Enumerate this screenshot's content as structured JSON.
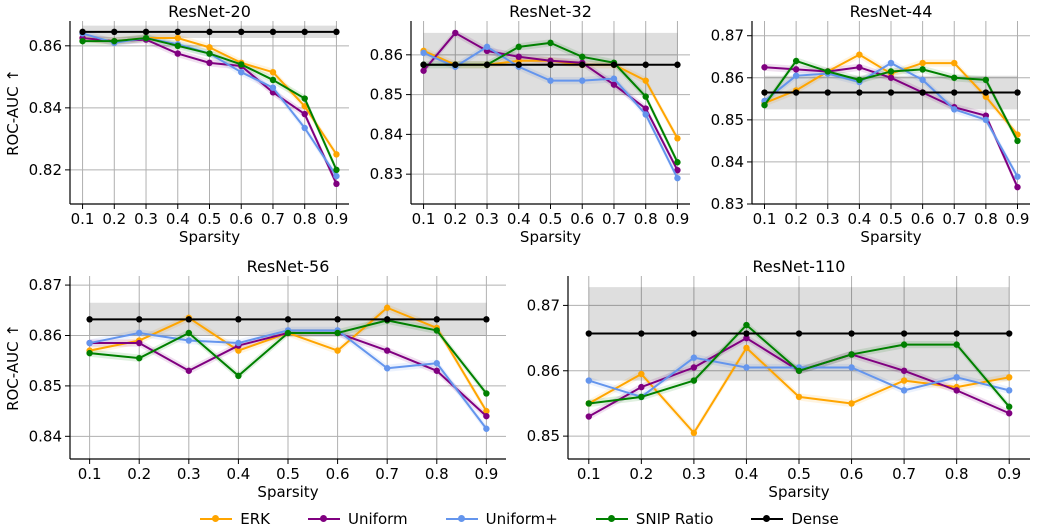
{
  "chart_data": [
    {
      "type": "line",
      "title": "ResNet-20",
      "xlabel": "Sparsity",
      "ylabel": "ROC-AUC ↑",
      "x": [
        0.1,
        0.2,
        0.3,
        0.4,
        0.5,
        0.6,
        0.7,
        0.8,
        0.9
      ],
      "xticks": [
        "0.1",
        "0.2",
        "0.3",
        "0.4",
        "0.5",
        "0.6",
        "0.7",
        "0.8",
        "0.9"
      ],
      "ylim": [
        0.809,
        0.868
      ],
      "yticks": [
        0.82,
        0.84,
        0.86
      ],
      "ytick_labels": [
        "0.82",
        "0.84",
        "0.86"
      ],
      "series": [
        {
          "name": "ERK",
          "values": [
            0.8625,
            0.8615,
            0.8625,
            0.8625,
            0.8595,
            0.8545,
            0.8515,
            0.8405,
            0.825
          ]
        },
        {
          "name": "Uniform",
          "values": [
            0.8625,
            0.8615,
            0.862,
            0.8575,
            0.8545,
            0.8535,
            0.845,
            0.838,
            0.8155
          ]
        },
        {
          "name": "Uniform+",
          "values": [
            0.864,
            0.861,
            0.8625,
            0.8605,
            0.8575,
            0.8515,
            0.8465,
            0.8335,
            0.818
          ]
        },
        {
          "name": "SNIP Ratio",
          "values": [
            0.8615,
            0.8615,
            0.8625,
            0.86,
            0.8575,
            0.854,
            0.849,
            0.843,
            0.82
          ]
        },
        {
          "name": "Dense",
          "values": [
            0.8645,
            0.8645,
            0.8645,
            0.8645,
            0.8645,
            0.8645,
            0.8645,
            0.8645,
            0.8645
          ],
          "band": [
            0.8625,
            0.8665
          ]
        }
      ]
    },
    {
      "type": "line",
      "title": "ResNet-32",
      "xlabel": "Sparsity",
      "ylabel": "",
      "x": [
        0.1,
        0.2,
        0.3,
        0.4,
        0.5,
        0.6,
        0.7,
        0.8,
        0.9
      ],
      "xticks": [
        "0.1",
        "0.2",
        "0.3",
        "0.4",
        "0.5",
        "0.6",
        "0.7",
        "0.8",
        "0.9"
      ],
      "ylim": [
        0.8225,
        0.8685
      ],
      "yticks": [
        0.83,
        0.84,
        0.85,
        0.86
      ],
      "ytick_labels": [
        "0.83",
        "0.84",
        "0.85",
        "0.86"
      ],
      "series": [
        {
          "name": "ERK",
          "values": [
            0.861,
            0.8575,
            0.8575,
            0.8585,
            0.8585,
            0.8575,
            0.8575,
            0.8535,
            0.839
          ]
        },
        {
          "name": "Uniform",
          "values": [
            0.856,
            0.8655,
            0.861,
            0.8595,
            0.8585,
            0.858,
            0.8525,
            0.8465,
            0.831
          ]
        },
        {
          "name": "Uniform+",
          "values": [
            0.8605,
            0.857,
            0.862,
            0.857,
            0.8535,
            0.8535,
            0.854,
            0.845,
            0.829
          ]
        },
        {
          "name": "SNIP Ratio",
          "values": [
            0.8575,
            0.8575,
            0.8575,
            0.862,
            0.863,
            0.8595,
            0.858,
            0.8495,
            0.833
          ]
        },
        {
          "name": "Dense",
          "values": [
            0.8575,
            0.8575,
            0.8575,
            0.8575,
            0.8575,
            0.8575,
            0.8575,
            0.8575,
            0.8575
          ],
          "band": [
            0.85,
            0.8655
          ]
        }
      ]
    },
    {
      "type": "line",
      "title": "ResNet-44",
      "xlabel": "Sparsity",
      "ylabel": "",
      "x": [
        0.1,
        0.2,
        0.3,
        0.4,
        0.5,
        0.6,
        0.7,
        0.8,
        0.9
      ],
      "xticks": [
        "0.1",
        "0.2",
        "0.3",
        "0.4",
        "0.5",
        "0.6",
        "0.7",
        "0.8",
        "0.9"
      ],
      "ylim": [
        0.83,
        0.8735
      ],
      "yticks": [
        0.83,
        0.84,
        0.85,
        0.86,
        0.87
      ],
      "ytick_labels": [
        "0.83",
        "0.84",
        "0.85",
        "0.86",
        "0.87"
      ],
      "series": [
        {
          "name": "ERK",
          "values": [
            0.854,
            0.857,
            0.8615,
            0.8655,
            0.861,
            0.8635,
            0.8635,
            0.8555,
            0.8465
          ]
        },
        {
          "name": "Uniform",
          "values": [
            0.8625,
            0.862,
            0.8615,
            0.8625,
            0.86,
            0.8565,
            0.853,
            0.851,
            0.834
          ]
        },
        {
          "name": "Uniform+",
          "values": [
            0.8545,
            0.8605,
            0.861,
            0.859,
            0.8635,
            0.8595,
            0.8525,
            0.85,
            0.8365
          ]
        },
        {
          "name": "SNIP Ratio",
          "values": [
            0.8535,
            0.864,
            0.8615,
            0.8595,
            0.8615,
            0.862,
            0.86,
            0.8595,
            0.845
          ]
        },
        {
          "name": "Dense",
          "values": [
            0.8565,
            0.8565,
            0.8565,
            0.8565,
            0.8565,
            0.8565,
            0.8565,
            0.8565,
            0.8565
          ],
          "band": [
            0.8525,
            0.8605
          ]
        }
      ]
    },
    {
      "type": "line",
      "title": "ResNet-56",
      "xlabel": "Sparsity",
      "ylabel": "ROC-AUC ↑",
      "x": [
        0.1,
        0.2,
        0.3,
        0.4,
        0.5,
        0.6,
        0.7,
        0.8,
        0.9
      ],
      "xticks": [
        "0.1",
        "0.2",
        "0.3",
        "0.4",
        "0.5",
        "0.6",
        "0.7",
        "0.8",
        "0.9"
      ],
      "ylim": [
        0.8355,
        0.8718
      ],
      "yticks": [
        0.84,
        0.85,
        0.86,
        0.87
      ],
      "ytick_labels": [
        "0.84",
        "0.85",
        "0.86",
        "0.87"
      ],
      "series": [
        {
          "name": "ERK",
          "values": [
            0.857,
            0.859,
            0.8635,
            0.857,
            0.8605,
            0.857,
            0.8655,
            0.8615,
            0.845
          ]
        },
        {
          "name": "Uniform",
          "values": [
            0.8585,
            0.8585,
            0.853,
            0.858,
            0.8605,
            0.8605,
            0.857,
            0.853,
            0.844
          ]
        },
        {
          "name": "Uniform+",
          "values": [
            0.8585,
            0.8605,
            0.859,
            0.8585,
            0.861,
            0.861,
            0.8535,
            0.8545,
            0.8415
          ]
        },
        {
          "name": "SNIP Ratio",
          "values": [
            0.8565,
            0.8555,
            0.8605,
            0.852,
            0.8605,
            0.8605,
            0.863,
            0.861,
            0.8485
          ]
        },
        {
          "name": "Dense",
          "values": [
            0.8632,
            0.8632,
            0.8632,
            0.8632,
            0.8632,
            0.8632,
            0.8632,
            0.8632,
            0.8632
          ],
          "band": [
            0.86,
            0.8665
          ]
        }
      ]
    },
    {
      "type": "line",
      "title": "ResNet-110",
      "xlabel": "Sparsity",
      "ylabel": "",
      "x": [
        0.1,
        0.2,
        0.3,
        0.4,
        0.5,
        0.6,
        0.7,
        0.8,
        0.9
      ],
      "xticks": [
        "0.1",
        "0.2",
        "0.3",
        "0.4",
        "0.5",
        "0.6",
        "0.7",
        "0.8",
        "0.9"
      ],
      "ylim": [
        0.8465,
        0.8745
      ],
      "yticks": [
        0.85,
        0.86,
        0.87
      ],
      "ytick_labels": [
        "0.85",
        "0.86",
        "0.87"
      ],
      "series": [
        {
          "name": "ERK",
          "values": [
            0.855,
            0.8595,
            0.8505,
            0.8635,
            0.856,
            0.855,
            0.8585,
            0.8575,
            0.859
          ]
        },
        {
          "name": "Uniform",
          "values": [
            0.853,
            0.8575,
            0.8605,
            0.865,
            0.86,
            0.8625,
            0.86,
            0.857,
            0.8535
          ]
        },
        {
          "name": "Uniform+",
          "values": [
            0.8585,
            0.856,
            0.862,
            0.8605,
            0.8605,
            0.8605,
            0.857,
            0.859,
            0.857
          ]
        },
        {
          "name": "SNIP Ratio",
          "values": [
            0.855,
            0.856,
            0.8585,
            0.867,
            0.86,
            0.8625,
            0.864,
            0.864,
            0.8545
          ]
        },
        {
          "name": "Dense",
          "values": [
            0.8657,
            0.8657,
            0.8657,
            0.8657,
            0.8657,
            0.8657,
            0.8657,
            0.8657,
            0.8657
          ],
          "band": [
            0.8585,
            0.8728
          ]
        }
      ]
    }
  ],
  "legend": [
    {
      "label": "ERK",
      "color": "#FFA500"
    },
    {
      "label": "Uniform",
      "color": "#800080"
    },
    {
      "label": "Uniform+",
      "color": "#6495ED"
    },
    {
      "label": "SNIP Ratio",
      "color": "#008000"
    },
    {
      "label": "Dense",
      "color": "#000000"
    }
  ],
  "colors": {
    "ERK": "#FFA500",
    "Uniform": "#800080",
    "Uniform+": "#6495ED",
    "SNIP Ratio": "#008000",
    "Dense": "#000000"
  }
}
